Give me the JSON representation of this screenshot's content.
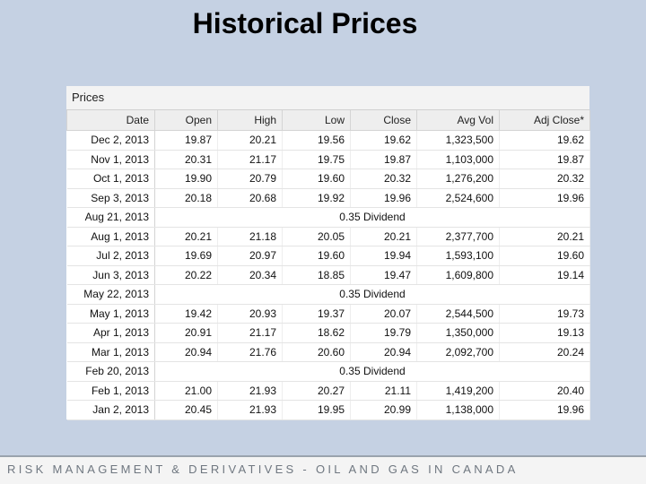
{
  "slide": {
    "title": "Historical Prices",
    "footer": "RISK MANAGEMENT & DERIVATIVES - OIL AND GAS IN CANADA"
  },
  "panel": {
    "header": "Prices",
    "columns": [
      "Date",
      "Open",
      "High",
      "Low",
      "Close",
      "Avg Vol",
      "Adj Close*"
    ],
    "rows": [
      {
        "type": "price",
        "cells": [
          "Dec 2, 2013",
          "19.87",
          "20.21",
          "19.56",
          "19.62",
          "1,323,500",
          "19.62"
        ]
      },
      {
        "type": "price",
        "cells": [
          "Nov 1, 2013",
          "20.31",
          "21.17",
          "19.75",
          "19.87",
          "1,103,000",
          "19.87"
        ]
      },
      {
        "type": "price",
        "cells": [
          "Oct 1, 2013",
          "19.90",
          "20.79",
          "19.60",
          "20.32",
          "1,276,200",
          "20.32"
        ]
      },
      {
        "type": "price",
        "cells": [
          "Sep 3, 2013",
          "20.18",
          "20.68",
          "19.92",
          "19.96",
          "2,524,600",
          "19.96"
        ]
      },
      {
        "type": "dividend",
        "date": "Aug 21, 2013",
        "text": "0.35 Dividend"
      },
      {
        "type": "price",
        "cells": [
          "Aug 1, 2013",
          "20.21",
          "21.18",
          "20.05",
          "20.21",
          "2,377,700",
          "20.21"
        ]
      },
      {
        "type": "price",
        "cells": [
          "Jul 2, 2013",
          "19.69",
          "20.97",
          "19.60",
          "19.94",
          "1,593,100",
          "19.60"
        ]
      },
      {
        "type": "price",
        "cells": [
          "Jun 3, 2013",
          "20.22",
          "20.34",
          "18.85",
          "19.47",
          "1,609,800",
          "19.14"
        ]
      },
      {
        "type": "dividend",
        "date": "May 22, 2013",
        "text": "0.35 Dividend"
      },
      {
        "type": "price",
        "cells": [
          "May 1, 2013",
          "19.42",
          "20.93",
          "19.37",
          "20.07",
          "2,544,500",
          "19.73"
        ]
      },
      {
        "type": "price",
        "cells": [
          "Apr 1, 2013",
          "20.91",
          "21.17",
          "18.62",
          "19.79",
          "1,350,000",
          "19.13"
        ]
      },
      {
        "type": "price",
        "cells": [
          "Mar 1, 2013",
          "20.94",
          "21.76",
          "20.60",
          "20.94",
          "2,092,700",
          "20.24"
        ]
      },
      {
        "type": "dividend",
        "date": "Feb 20, 2013",
        "text": "0.35 Dividend"
      },
      {
        "type": "price",
        "cells": [
          "Feb 1, 2013",
          "21.00",
          "21.93",
          "20.27",
          "21.11",
          "1,419,200",
          "20.40"
        ]
      },
      {
        "type": "price",
        "cells": [
          "Jan 2, 2013",
          "20.45",
          "21.93",
          "19.95",
          "20.99",
          "1,138,000",
          "19.96"
        ]
      }
    ]
  }
}
